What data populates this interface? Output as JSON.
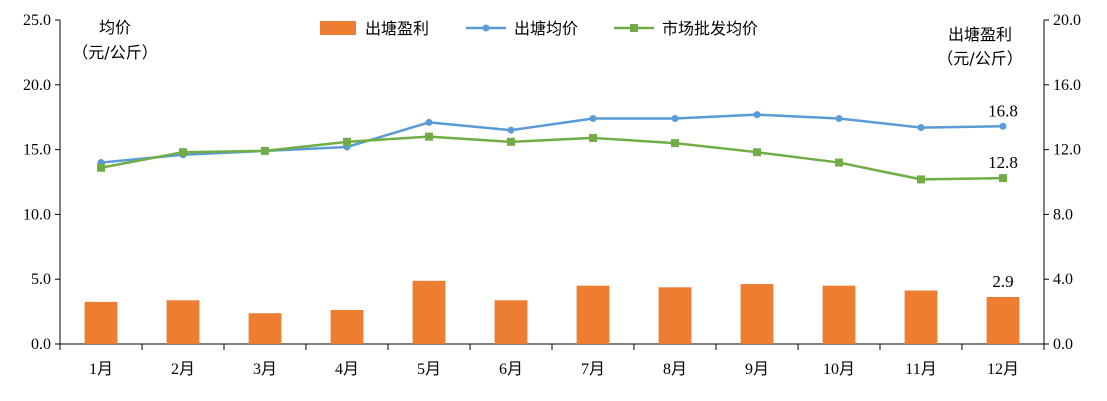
{
  "chart_data": {
    "type": "bar",
    "categories": [
      "1月",
      "2月",
      "3月",
      "4月",
      "5月",
      "6月",
      "7月",
      "8月",
      "9月",
      "10月",
      "11月",
      "12月"
    ],
    "left_axis": {
      "label_line1": "均价",
      "label_line2": "（元/公斤）",
      "ylim": [
        0,
        25
      ],
      "ticks": [
        "0.0",
        "5.0",
        "10.0",
        "15.0",
        "20.0",
        "25.0"
      ]
    },
    "right_axis": {
      "label_line1": "出塘盈利",
      "label_line2": "（元/公斤）",
      "ylim": [
        0,
        20
      ],
      "ticks": [
        "0.0",
        "4.0",
        "8.0",
        "12.0",
        "16.0",
        "20.0"
      ]
    },
    "series": [
      {
        "name": "出塘盈利",
        "type": "bar",
        "axis": "right",
        "color": "#ED7D31",
        "values": [
          2.6,
          2.7,
          1.9,
          2.1,
          3.9,
          2.7,
          3.6,
          3.5,
          3.7,
          3.6,
          3.3,
          2.9
        ]
      },
      {
        "name": "出塘均价",
        "type": "line",
        "axis": "left",
        "color": "#5B9BD5",
        "marker": "circle",
        "values": [
          14.0,
          14.6,
          14.9,
          15.2,
          17.1,
          16.5,
          17.4,
          17.4,
          17.7,
          17.4,
          16.7,
          16.8
        ]
      },
      {
        "name": "市场批发均价",
        "type": "line",
        "axis": "left",
        "color": "#70AD47",
        "marker": "square",
        "values": [
          13.6,
          14.8,
          14.9,
          15.6,
          16.0,
          15.6,
          15.9,
          15.5,
          14.8,
          14.0,
          12.7,
          12.8
        ]
      }
    ],
    "annotations": [
      {
        "series": "出塘均价",
        "index": 11,
        "text": "16.8"
      },
      {
        "series": "市场批发均价",
        "index": 11,
        "text": "12.8"
      },
      {
        "series": "出塘盈利",
        "index": 11,
        "text": "2.9"
      }
    ],
    "legend_position": "top-center",
    "grid": false
  }
}
